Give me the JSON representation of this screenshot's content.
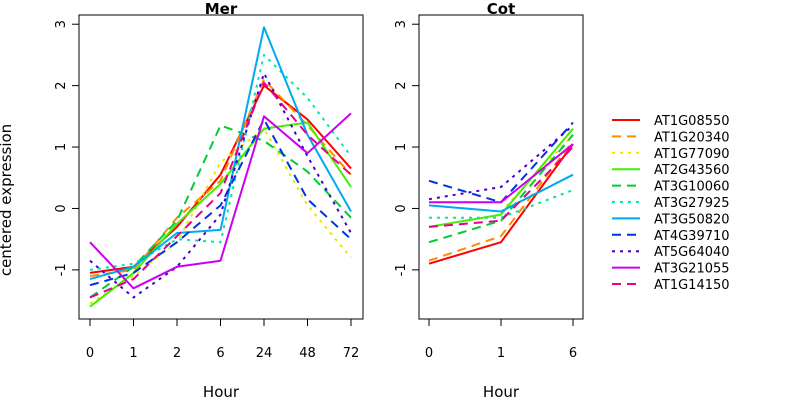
{
  "chart_data": {
    "type": "line",
    "ylabel": "centered expression",
    "ylim": [
      -1.8,
      3.15
    ],
    "yticks": [
      "3",
      "2",
      "1",
      "0",
      "-1"
    ],
    "series_styles": [
      {
        "name": "AT1G08550",
        "color": "#ff0000",
        "dash": "solid"
      },
      {
        "name": "AT1G20340",
        "color": "#ff8c00",
        "dash": "dashed"
      },
      {
        "name": "AT1G77090",
        "color": "#e8e800",
        "dash": "dotted"
      },
      {
        "name": "AT2G43560",
        "color": "#44ee00",
        "dash": "solid"
      },
      {
        "name": "AT3G10060",
        "color": "#00cc33",
        "dash": "dashed"
      },
      {
        "name": "AT3G27925",
        "color": "#00e6b0",
        "dash": "dotted"
      },
      {
        "name": "AT3G50820",
        "color": "#00aaee",
        "dash": "solid"
      },
      {
        "name": "AT4G39710",
        "color": "#0033dd",
        "dash": "dashed"
      },
      {
        "name": "AT5G64040",
        "color": "#4400cc",
        "dash": "dotted"
      },
      {
        "name": "AT3G21055",
        "color": "#cc00ee",
        "dash": "solid"
      },
      {
        "name": "AT1G14150",
        "color": "#e6008a",
        "dash": "dashed"
      }
    ],
    "panels": [
      {
        "title": "Mer",
        "xlabel": "Hour",
        "categories": [
          "0",
          "1",
          "2",
          "6",
          "24",
          "48",
          "72"
        ],
        "series": [
          {
            "name": "AT1G08550",
            "values": [
              -1.05,
              -0.95,
              -0.3,
              0.55,
              2.0,
              1.45,
              0.65
            ]
          },
          {
            "name": "AT1G20340",
            "values": [
              -1.1,
              -1.0,
              -0.15,
              0.45,
              2.1,
              1.35,
              0.55
            ]
          },
          {
            "name": "AT1G77090",
            "values": [
              -1.55,
              -1.1,
              -0.55,
              0.75,
              1.3,
              0.05,
              -0.8
            ]
          },
          {
            "name": "AT2G43560",
            "values": [
              -1.6,
              -1.05,
              -0.25,
              0.4,
              1.3,
              1.4,
              0.35
            ]
          },
          {
            "name": "AT3G10060",
            "values": [
              -1.45,
              -0.95,
              -0.2,
              1.35,
              1.1,
              0.6,
              -0.15
            ]
          },
          {
            "name": "AT3G27925",
            "values": [
              -1.0,
              -0.9,
              -0.5,
              -0.55,
              2.5,
              1.8,
              0.85
            ]
          },
          {
            "name": "AT3G50820",
            "values": [
              -1.15,
              -0.95,
              -0.4,
              -0.35,
              2.95,
              1.2,
              -0.05
            ]
          },
          {
            "name": "AT4G39710",
            "values": [
              -1.25,
              -1.05,
              -0.55,
              0.05,
              1.45,
              0.15,
              -0.5
            ]
          },
          {
            "name": "AT5G64040",
            "values": [
              -0.85,
              -1.45,
              -0.95,
              -0.1,
              2.2,
              0.85,
              -0.4
            ]
          },
          {
            "name": "AT3G21055",
            "values": [
              -0.55,
              -1.3,
              -0.95,
              -0.85,
              1.5,
              0.9,
              1.55
            ]
          },
          {
            "name": "AT1G14150",
            "values": [
              -1.45,
              -1.15,
              -0.45,
              0.25,
              2.05,
              1.2,
              0.55
            ]
          }
        ]
      },
      {
        "title": "Cot",
        "xlabel": "Hour",
        "categories": [
          "0",
          "1",
          "6"
        ],
        "series": [
          {
            "name": "AT1G08550",
            "values": [
              -0.9,
              -0.55,
              1.05
            ]
          },
          {
            "name": "AT1G20340",
            "values": [
              -0.85,
              -0.45,
              1.1
            ]
          },
          {
            "name": "AT1G77090",
            "values": [
              0.05,
              -0.05,
              1.2
            ]
          },
          {
            "name": "AT2G43560",
            "values": [
              -0.3,
              -0.1,
              1.3
            ]
          },
          {
            "name": "AT3G10060",
            "values": [
              -0.55,
              -0.2,
              1.2
            ]
          },
          {
            "name": "AT3G27925",
            "values": [
              -0.15,
              -0.15,
              0.3
            ]
          },
          {
            "name": "AT3G50820",
            "values": [
              0.05,
              -0.05,
              0.55
            ]
          },
          {
            "name": "AT4G39710",
            "values": [
              0.45,
              0.1,
              1.4
            ]
          },
          {
            "name": "AT5G64040",
            "values": [
              0.15,
              0.35,
              1.35
            ]
          },
          {
            "name": "AT3G21055",
            "values": [
              0.1,
              0.1,
              1.05
            ]
          },
          {
            "name": "AT1G14150",
            "values": [
              -0.3,
              -0.2,
              1.0
            ]
          }
        ]
      }
    ],
    "legend": {
      "placement": "right",
      "entries": [
        "AT1G08550",
        "AT1G20340",
        "AT1G77090",
        "AT2G43560",
        "AT3G10060",
        "AT3G27925",
        "AT3G50820",
        "AT4G39710",
        "AT5G64040",
        "AT3G21055",
        "AT1G14150"
      ]
    }
  }
}
